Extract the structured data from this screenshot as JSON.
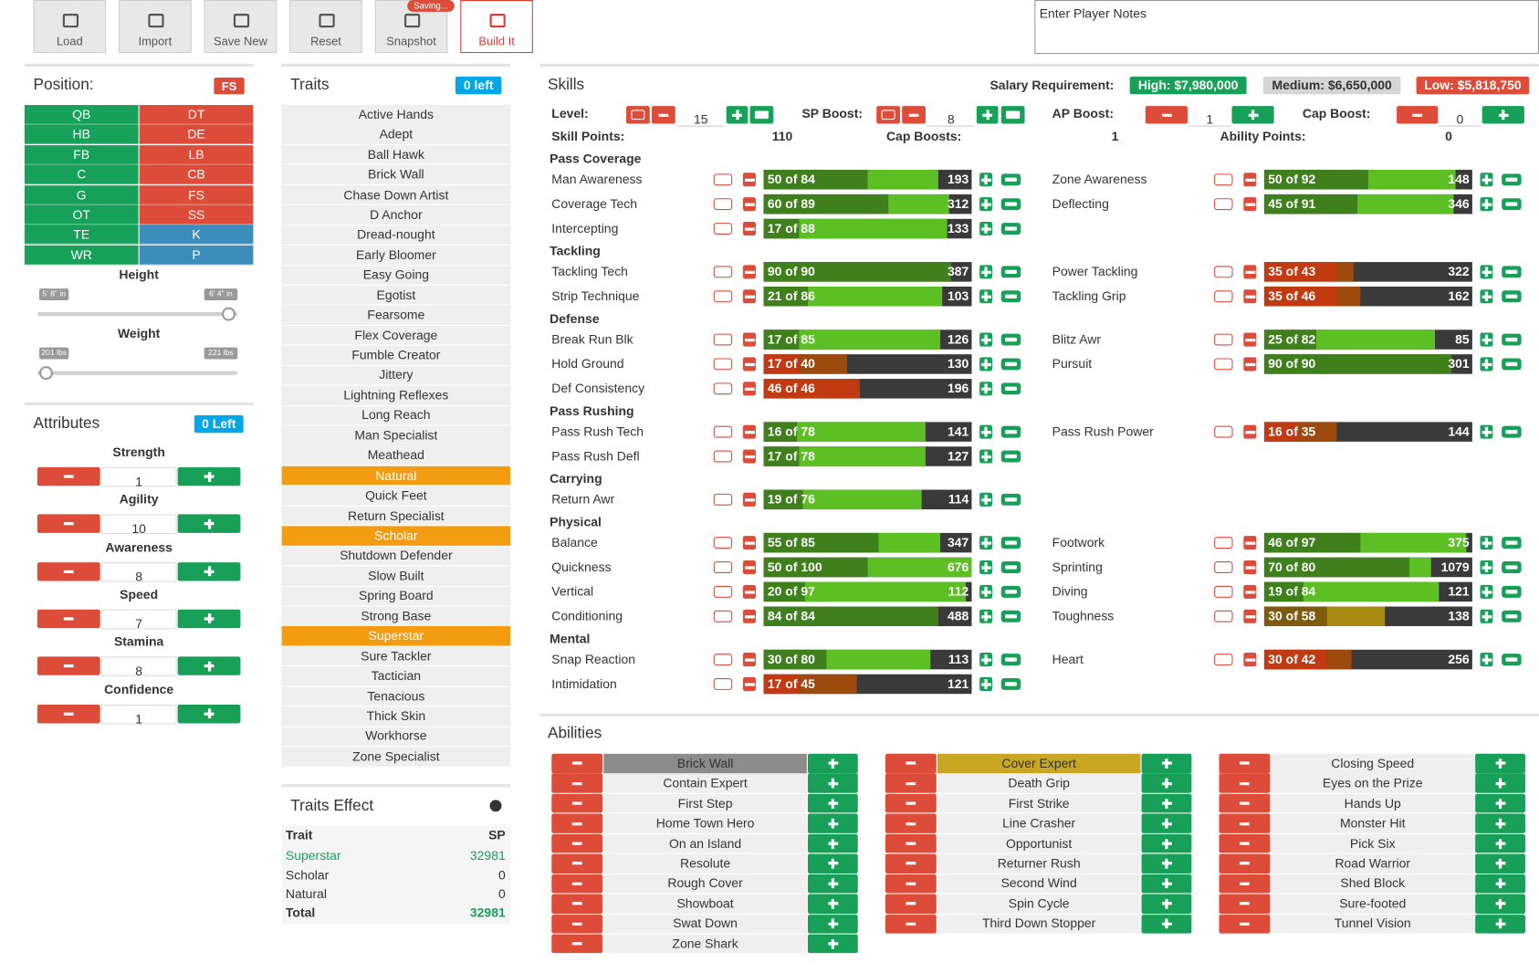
{
  "toolbar": {
    "buttons": [
      {
        "label": "Load"
      },
      {
        "label": "Import"
      },
      {
        "label": "Save New"
      },
      {
        "label": "Reset"
      },
      {
        "label": "Snapshot",
        "badge": "Saving..."
      },
      {
        "label": "Build It",
        "active": true
      }
    ]
  },
  "notes": {
    "placeholder": "Enter Player Notes"
  },
  "position": {
    "title": "Position:",
    "selected": "FS",
    "columns": [
      [
        {
          "label": "QB",
          "color": "#17a05a"
        },
        {
          "label": "HB",
          "color": "#17a05a"
        },
        {
          "label": "FB",
          "color": "#17a05a"
        },
        {
          "label": "C",
          "color": "#17a05a"
        },
        {
          "label": "G",
          "color": "#17a05a"
        },
        {
          "label": "OT",
          "color": "#17a05a"
        },
        {
          "label": "TE",
          "color": "#17a05a"
        },
        {
          "label": "WR",
          "color": "#17a05a"
        }
      ],
      [
        {
          "label": "DT",
          "color": "#dd4b39"
        },
        {
          "label": "DE",
          "color": "#dd4b39"
        },
        {
          "label": "LB",
          "color": "#dd4b39"
        },
        {
          "label": "CB",
          "color": "#dd4b39"
        },
        {
          "label": "FS",
          "color": "#dd4b39"
        },
        {
          "label": "SS",
          "color": "#dd4b39"
        },
        {
          "label": "K",
          "color": "#3c8dbc"
        },
        {
          "label": "P",
          "color": "#3c8dbc"
        }
      ]
    ]
  },
  "body": {
    "height": {
      "label": "Height",
      "min": "5' 8\" in",
      "max": "6' 4\" in",
      "slider": 1
    },
    "weight": {
      "label": "Weight",
      "min": "201 lbs",
      "max": "221 lbs",
      "slider": 0
    }
  },
  "attributes": {
    "title": "Attributes",
    "left": "0 Left",
    "items": [
      {
        "name": "Strength",
        "value": 1
      },
      {
        "name": "Agility",
        "value": 10
      },
      {
        "name": "Awareness",
        "value": 8
      },
      {
        "name": "Speed",
        "value": 7
      },
      {
        "name": "Stamina",
        "value": 8
      },
      {
        "name": "Confidence",
        "value": 1
      }
    ]
  },
  "traits": {
    "title": "Traits",
    "left": "0 left",
    "items": [
      {
        "name": "Active Hands"
      },
      {
        "name": "Adept"
      },
      {
        "name": "Ball Hawk"
      },
      {
        "name": "Brick Wall"
      },
      {
        "name": "Chase Down Artist"
      },
      {
        "name": "D Anchor"
      },
      {
        "name": "Dread-nought"
      },
      {
        "name": "Early Bloomer"
      },
      {
        "name": "Easy Going"
      },
      {
        "name": "Egotist"
      },
      {
        "name": "Fearsome"
      },
      {
        "name": "Flex Coverage"
      },
      {
        "name": "Fumble Creator"
      },
      {
        "name": "Jittery"
      },
      {
        "name": "Lightning Reflexes"
      },
      {
        "name": "Long Reach"
      },
      {
        "name": "Man Specialist"
      },
      {
        "name": "Meathead"
      },
      {
        "name": "Natural",
        "selected": true
      },
      {
        "name": "Quick Feet"
      },
      {
        "name": "Return Specialist"
      },
      {
        "name": "Scholar",
        "selected": true
      },
      {
        "name": "Shutdown Defender"
      },
      {
        "name": "Slow Built"
      },
      {
        "name": "Spring Board"
      },
      {
        "name": "Strong Base"
      },
      {
        "name": "Superstar",
        "selected": true
      },
      {
        "name": "Sure Tackler"
      },
      {
        "name": "Tactician"
      },
      {
        "name": "Tenacious"
      },
      {
        "name": "Thick Skin"
      },
      {
        "name": "Workhorse"
      },
      {
        "name": "Zone Specialist"
      }
    ]
  },
  "traits_effect": {
    "title": "Traits Effect",
    "header": [
      "Trait",
      "SP"
    ],
    "rows": [
      {
        "trait": "Superstar",
        "sp": 32981,
        "highlight": true
      },
      {
        "trait": "Scholar",
        "sp": 0
      },
      {
        "trait": "Natural",
        "sp": 0
      }
    ],
    "total": {
      "label": "Total",
      "sp": 32981
    }
  },
  "skills": {
    "title": "Skills",
    "salary": {
      "label": "Salary Requirement:",
      "high": "High: $7,980,000",
      "medium": "Medium: $6,650,000",
      "low": "Low: $5,818,750"
    },
    "controls": [
      {
        "label": "Level:",
        "value": 15
      },
      {
        "label": "SP Boost:",
        "value": 8
      },
      {
        "label": "AP Boost:",
        "value": 1
      },
      {
        "label": "Cap Boost:",
        "value": 0
      }
    ],
    "points": [
      {
        "label": "Skill Points:",
        "value": 110
      },
      {
        "label": "Cap Boosts:",
        "value": 1
      },
      {
        "label": "Ability Points:",
        "value": 0
      }
    ],
    "groups": [
      {
        "name": "Pass Coverage",
        "left": [
          {
            "name": "Man Awareness",
            "value": 50,
            "cap": 84,
            "label": "50 of 84",
            "sp": 193,
            "tier": "high"
          },
          {
            "name": "Coverage Tech",
            "value": 60,
            "cap": 89,
            "label": "60 of 89",
            "sp": 312,
            "tier": "high"
          },
          {
            "name": "Intercepting",
            "value": 17,
            "cap": 88,
            "label": "17 of 88",
            "sp": 133,
            "tier": "high"
          }
        ],
        "right": [
          {
            "name": "Zone Awareness",
            "value": 50,
            "cap": 92,
            "label": "50 of 92",
            "sp": 148,
            "tier": "high"
          },
          {
            "name": "Deflecting",
            "value": 45,
            "cap": 91,
            "label": "45 of 91",
            "sp": 346,
            "tier": "high"
          }
        ]
      },
      {
        "name": "Tackling",
        "left": [
          {
            "name": "Tackling Tech",
            "value": 90,
            "cap": 90,
            "label": "90 of 90",
            "sp": 387,
            "tier": "high"
          },
          {
            "name": "Strip Technique",
            "value": 21,
            "cap": 86,
            "label": "21 of 86",
            "sp": 103,
            "tier": "high"
          }
        ],
        "right": [
          {
            "name": "Power Tackling",
            "value": 35,
            "cap": 43,
            "label": "35 of 43",
            "sp": 322,
            "tier": "low"
          },
          {
            "name": "Tackling Grip",
            "value": 35,
            "cap": 46,
            "label": "35 of 46",
            "sp": 162,
            "tier": "low"
          }
        ]
      },
      {
        "name": "Defense",
        "left": [
          {
            "name": "Break Run Blk",
            "value": 17,
            "cap": 85,
            "label": "17 of 85",
            "sp": 126,
            "tier": "high"
          },
          {
            "name": "Hold Ground",
            "value": 17,
            "cap": 40,
            "label": "17 of 40",
            "sp": 130,
            "tier": "low"
          },
          {
            "name": "Def Consistency",
            "value": 46,
            "cap": 46,
            "label": "46 of 46",
            "sp": 196,
            "tier": "low"
          }
        ],
        "right": [
          {
            "name": "Blitz Awr",
            "value": 25,
            "cap": 82,
            "label": "25 of 82",
            "sp": 85,
            "tier": "high"
          },
          {
            "name": "Pursuit",
            "value": 90,
            "cap": 90,
            "label": "90 of 90",
            "sp": 301,
            "tier": "high"
          }
        ]
      },
      {
        "name": "Pass Rushing",
        "left": [
          {
            "name": "Pass Rush Tech",
            "value": 16,
            "cap": 78,
            "label": "16 of 78",
            "sp": 141,
            "tier": "high"
          },
          {
            "name": "Pass Rush Defl",
            "value": 17,
            "cap": 78,
            "label": "17 of 78",
            "sp": 127,
            "tier": "high"
          }
        ],
        "right": [
          {
            "name": "Pass Rush Power",
            "value": 16,
            "cap": 35,
            "label": "16 of 35",
            "sp": 144,
            "tier": "low"
          }
        ]
      },
      {
        "name": "Carrying",
        "left": [
          {
            "name": "Return Awr",
            "value": 19,
            "cap": 76,
            "label": "19 of 76",
            "sp": 114,
            "tier": "high"
          }
        ],
        "right": []
      },
      {
        "name": "Physical",
        "left": [
          {
            "name": "Balance",
            "value": 55,
            "cap": 85,
            "label": "55 of 85",
            "sp": 347,
            "tier": "high"
          },
          {
            "name": "Quickness",
            "value": 50,
            "cap": 100,
            "label": "50 of 100",
            "sp": 676,
            "tier": "high"
          },
          {
            "name": "Vertical",
            "value": 20,
            "cap": 97,
            "label": "20 of 97",
            "sp": 112,
            "tier": "high"
          },
          {
            "name": "Conditioning",
            "value": 84,
            "cap": 84,
            "label": "84 of 84",
            "sp": 488,
            "tier": "high"
          }
        ],
        "right": [
          {
            "name": "Footwork",
            "value": 46,
            "cap": 97,
            "label": "46 of 97",
            "sp": 375,
            "tier": "high"
          },
          {
            "name": "Sprinting",
            "value": 70,
            "cap": 80,
            "label": "70 of 80",
            "sp": 1079,
            "tier": "high"
          },
          {
            "name": "Diving",
            "value": 19,
            "cap": 84,
            "label": "19 of 84",
            "sp": 121,
            "tier": "high"
          },
          {
            "name": "Toughness",
            "value": 30,
            "cap": 58,
            "label": "30 of 58",
            "sp": 138,
            "tier": "mid"
          }
        ]
      },
      {
        "name": "Mental",
        "left": [
          {
            "name": "Snap Reaction",
            "value": 30,
            "cap": 80,
            "label": "30 of 80",
            "sp": 113,
            "tier": "high"
          },
          {
            "name": "Intimidation",
            "value": 17,
            "cap": 45,
            "label": "17 of 45",
            "sp": 121,
            "tier": "low"
          }
        ],
        "right": [
          {
            "name": "Heart",
            "value": 30,
            "cap": 42,
            "label": "30 of 42",
            "sp": 256,
            "tier": "low"
          }
        ]
      }
    ]
  },
  "abilities": {
    "title": "Abilities",
    "columns": [
      [
        {
          "name": "Brick Wall",
          "highlight": "#8c8c8c"
        },
        {
          "name": "Contain Expert"
        },
        {
          "name": "First Step"
        },
        {
          "name": "Home Town Hero"
        },
        {
          "name": "On an Island"
        },
        {
          "name": "Resolute"
        },
        {
          "name": "Rough Cover"
        },
        {
          "name": "Showboat"
        },
        {
          "name": "Swat Down"
        },
        {
          "name": "Zone Shark"
        }
      ],
      [
        {
          "name": "Cover Expert",
          "highlight": "#c9a722"
        },
        {
          "name": "Death Grip"
        },
        {
          "name": "First Strike"
        },
        {
          "name": "Line Crasher"
        },
        {
          "name": "Opportunist"
        },
        {
          "name": "Returner Rush"
        },
        {
          "name": "Second Wind"
        },
        {
          "name": "Spin Cycle"
        },
        {
          "name": "Third Down Stopper"
        }
      ],
      [
        {
          "name": "Closing Speed"
        },
        {
          "name": "Eyes on the Prize"
        },
        {
          "name": "Hands Up"
        },
        {
          "name": "Monster Hit"
        },
        {
          "name": "Pick Six"
        },
        {
          "name": "Road Warrior"
        },
        {
          "name": "Shed Block"
        },
        {
          "name": "Sure-footed"
        },
        {
          "name": "Tunnel Vision"
        }
      ]
    ]
  }
}
